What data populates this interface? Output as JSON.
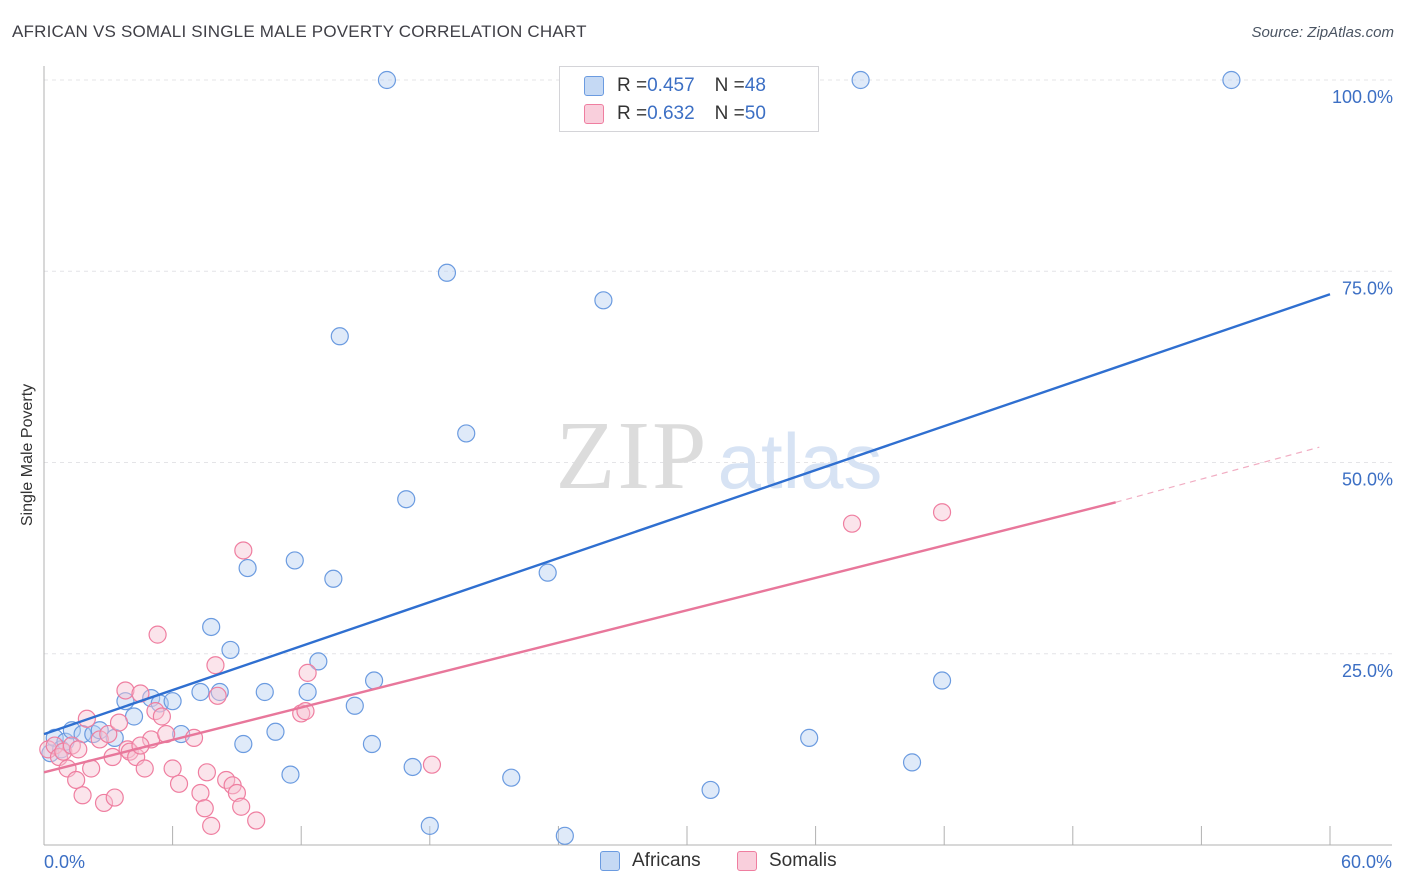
{
  "header": {
    "title": "AFRICAN VS SOMALI SINGLE MALE POVERTY CORRELATION CHART",
    "source": "Source: ZipAtlas.com"
  },
  "watermark": {
    "zip": "ZIP",
    "atlas": "atlas"
  },
  "legend": {
    "rows": [
      {
        "r_label": "R = ",
        "r_value": "0.457",
        "n_label": "N = ",
        "n_value": "48",
        "color": "#6b9be0",
        "fill": "#b9d0f2"
      },
      {
        "r_label": "R = ",
        "r_value": "0.632",
        "n_label": "N = ",
        "n_value": "50",
        "color": "#ef7ea0",
        "fill": "#f7c3d3"
      }
    ]
  },
  "chart_data": {
    "type": "scatter",
    "title": "AFRICAN VS SOMALI SINGLE MALE POVERTY CORRELATION CHART",
    "xlabel": "",
    "ylabel": "Single Male Poverty",
    "xlim": [
      0,
      60
    ],
    "ylim": [
      0,
      100
    ],
    "x_tick_labels": [
      "0.0%",
      "60.0%"
    ],
    "y_ticks": [
      25,
      50,
      75,
      100
    ],
    "y_tick_labels": [
      "25.0%",
      "50.0%",
      "75.0%",
      "100.0%"
    ],
    "grid": true,
    "legend_position": "top-center and bottom",
    "colors": {
      "Africans": "#6b9be0",
      "Somalis": "#ef7ea0",
      "africans_line": "#2f6fd0",
      "somalis_line": "#e8779b"
    },
    "series": [
      {
        "name": "Africans",
        "r": 0.457,
        "n": 48,
        "trend": {
          "x0": 0,
          "y0": 14.5,
          "x1": 60,
          "y1": 72.0
        },
        "points": [
          [
            0.3,
            12.0
          ],
          [
            0.5,
            14.0
          ],
          [
            0.8,
            12.5
          ],
          [
            1.0,
            13.5
          ],
          [
            1.3,
            15.0
          ],
          [
            1.8,
            14.5
          ],
          [
            2.3,
            14.5
          ],
          [
            2.6,
            15.0
          ],
          [
            3.3,
            14.0
          ],
          [
            3.8,
            18.8
          ],
          [
            4.2,
            16.8
          ],
          [
            5.0,
            19.2
          ],
          [
            5.4,
            18.5
          ],
          [
            6.0,
            18.8
          ],
          [
            6.4,
            14.5
          ],
          [
            7.3,
            20.0
          ],
          [
            7.8,
            28.5
          ],
          [
            8.2,
            20.0
          ],
          [
            8.7,
            25.5
          ],
          [
            9.3,
            13.2
          ],
          [
            9.5,
            36.2
          ],
          [
            10.3,
            20.0
          ],
          [
            10.8,
            14.8
          ],
          [
            11.5,
            9.2
          ],
          [
            11.7,
            37.2
          ],
          [
            12.3,
            20.0
          ],
          [
            12.8,
            24.0
          ],
          [
            13.5,
            34.8
          ],
          [
            13.8,
            66.5
          ],
          [
            14.5,
            18.2
          ],
          [
            15.3,
            13.2
          ],
          [
            15.4,
            21.5
          ],
          [
            16.0,
            100.0
          ],
          [
            16.9,
            45.2
          ],
          [
            17.2,
            10.2
          ],
          [
            18.0,
            2.5
          ],
          [
            18.8,
            74.8
          ],
          [
            19.7,
            53.8
          ],
          [
            21.8,
            8.8
          ],
          [
            23.5,
            35.6
          ],
          [
            24.3,
            1.2
          ],
          [
            26.1,
            71.2
          ],
          [
            31.1,
            7.2
          ],
          [
            35.7,
            14.0
          ],
          [
            38.1,
            100.0
          ],
          [
            40.5,
            10.8
          ],
          [
            41.9,
            21.5
          ],
          [
            55.4,
            100.0
          ]
        ]
      },
      {
        "name": "Somalis",
        "r": 0.632,
        "n": 50,
        "trend": {
          "x0": 0,
          "y0": 9.5,
          "x1": 50,
          "y1": 44.8
        },
        "trend_dashed": {
          "x0": 50,
          "y0": 44.8,
          "x1": 59.5,
          "y1": 52.0
        },
        "points": [
          [
            0.2,
            12.5
          ],
          [
            0.5,
            13.0
          ],
          [
            0.7,
            11.5
          ],
          [
            0.9,
            12.2
          ],
          [
            1.1,
            10.0
          ],
          [
            1.3,
            13.0
          ],
          [
            1.6,
            12.5
          ],
          [
            1.8,
            6.5
          ],
          [
            2.0,
            16.5
          ],
          [
            2.2,
            10.0
          ],
          [
            2.6,
            13.8
          ],
          [
            2.8,
            5.5
          ],
          [
            3.0,
            14.5
          ],
          [
            3.2,
            11.5
          ],
          [
            3.3,
            6.2
          ],
          [
            3.5,
            16.0
          ],
          [
            3.8,
            20.2
          ],
          [
            3.9,
            12.5
          ],
          [
            4.0,
            12.2
          ],
          [
            4.3,
            11.5
          ],
          [
            4.5,
            19.8
          ],
          [
            4.7,
            10.0
          ],
          [
            5.0,
            13.8
          ],
          [
            5.2,
            17.5
          ],
          [
            5.3,
            27.5
          ],
          [
            5.5,
            16.8
          ],
          [
            5.7,
            14.5
          ],
          [
            6.0,
            10.0
          ],
          [
            6.3,
            8.0
          ],
          [
            7.0,
            14.0
          ],
          [
            7.3,
            6.8
          ],
          [
            7.5,
            4.8
          ],
          [
            7.6,
            9.5
          ],
          [
            7.8,
            2.5
          ],
          [
            8.0,
            23.5
          ],
          [
            8.1,
            19.5
          ],
          [
            8.5,
            8.5
          ],
          [
            8.8,
            7.8
          ],
          [
            9.0,
            6.8
          ],
          [
            9.2,
            5.0
          ],
          [
            9.3,
            38.5
          ],
          [
            9.9,
            3.2
          ],
          [
            12.0,
            17.2
          ],
          [
            12.2,
            17.5
          ],
          [
            12.3,
            22.5
          ],
          [
            18.1,
            10.5
          ],
          [
            37.7,
            42.0
          ],
          [
            41.9,
            43.5
          ],
          [
            4.5,
            13.0
          ],
          [
            1.5,
            8.5
          ]
        ]
      }
    ]
  }
}
